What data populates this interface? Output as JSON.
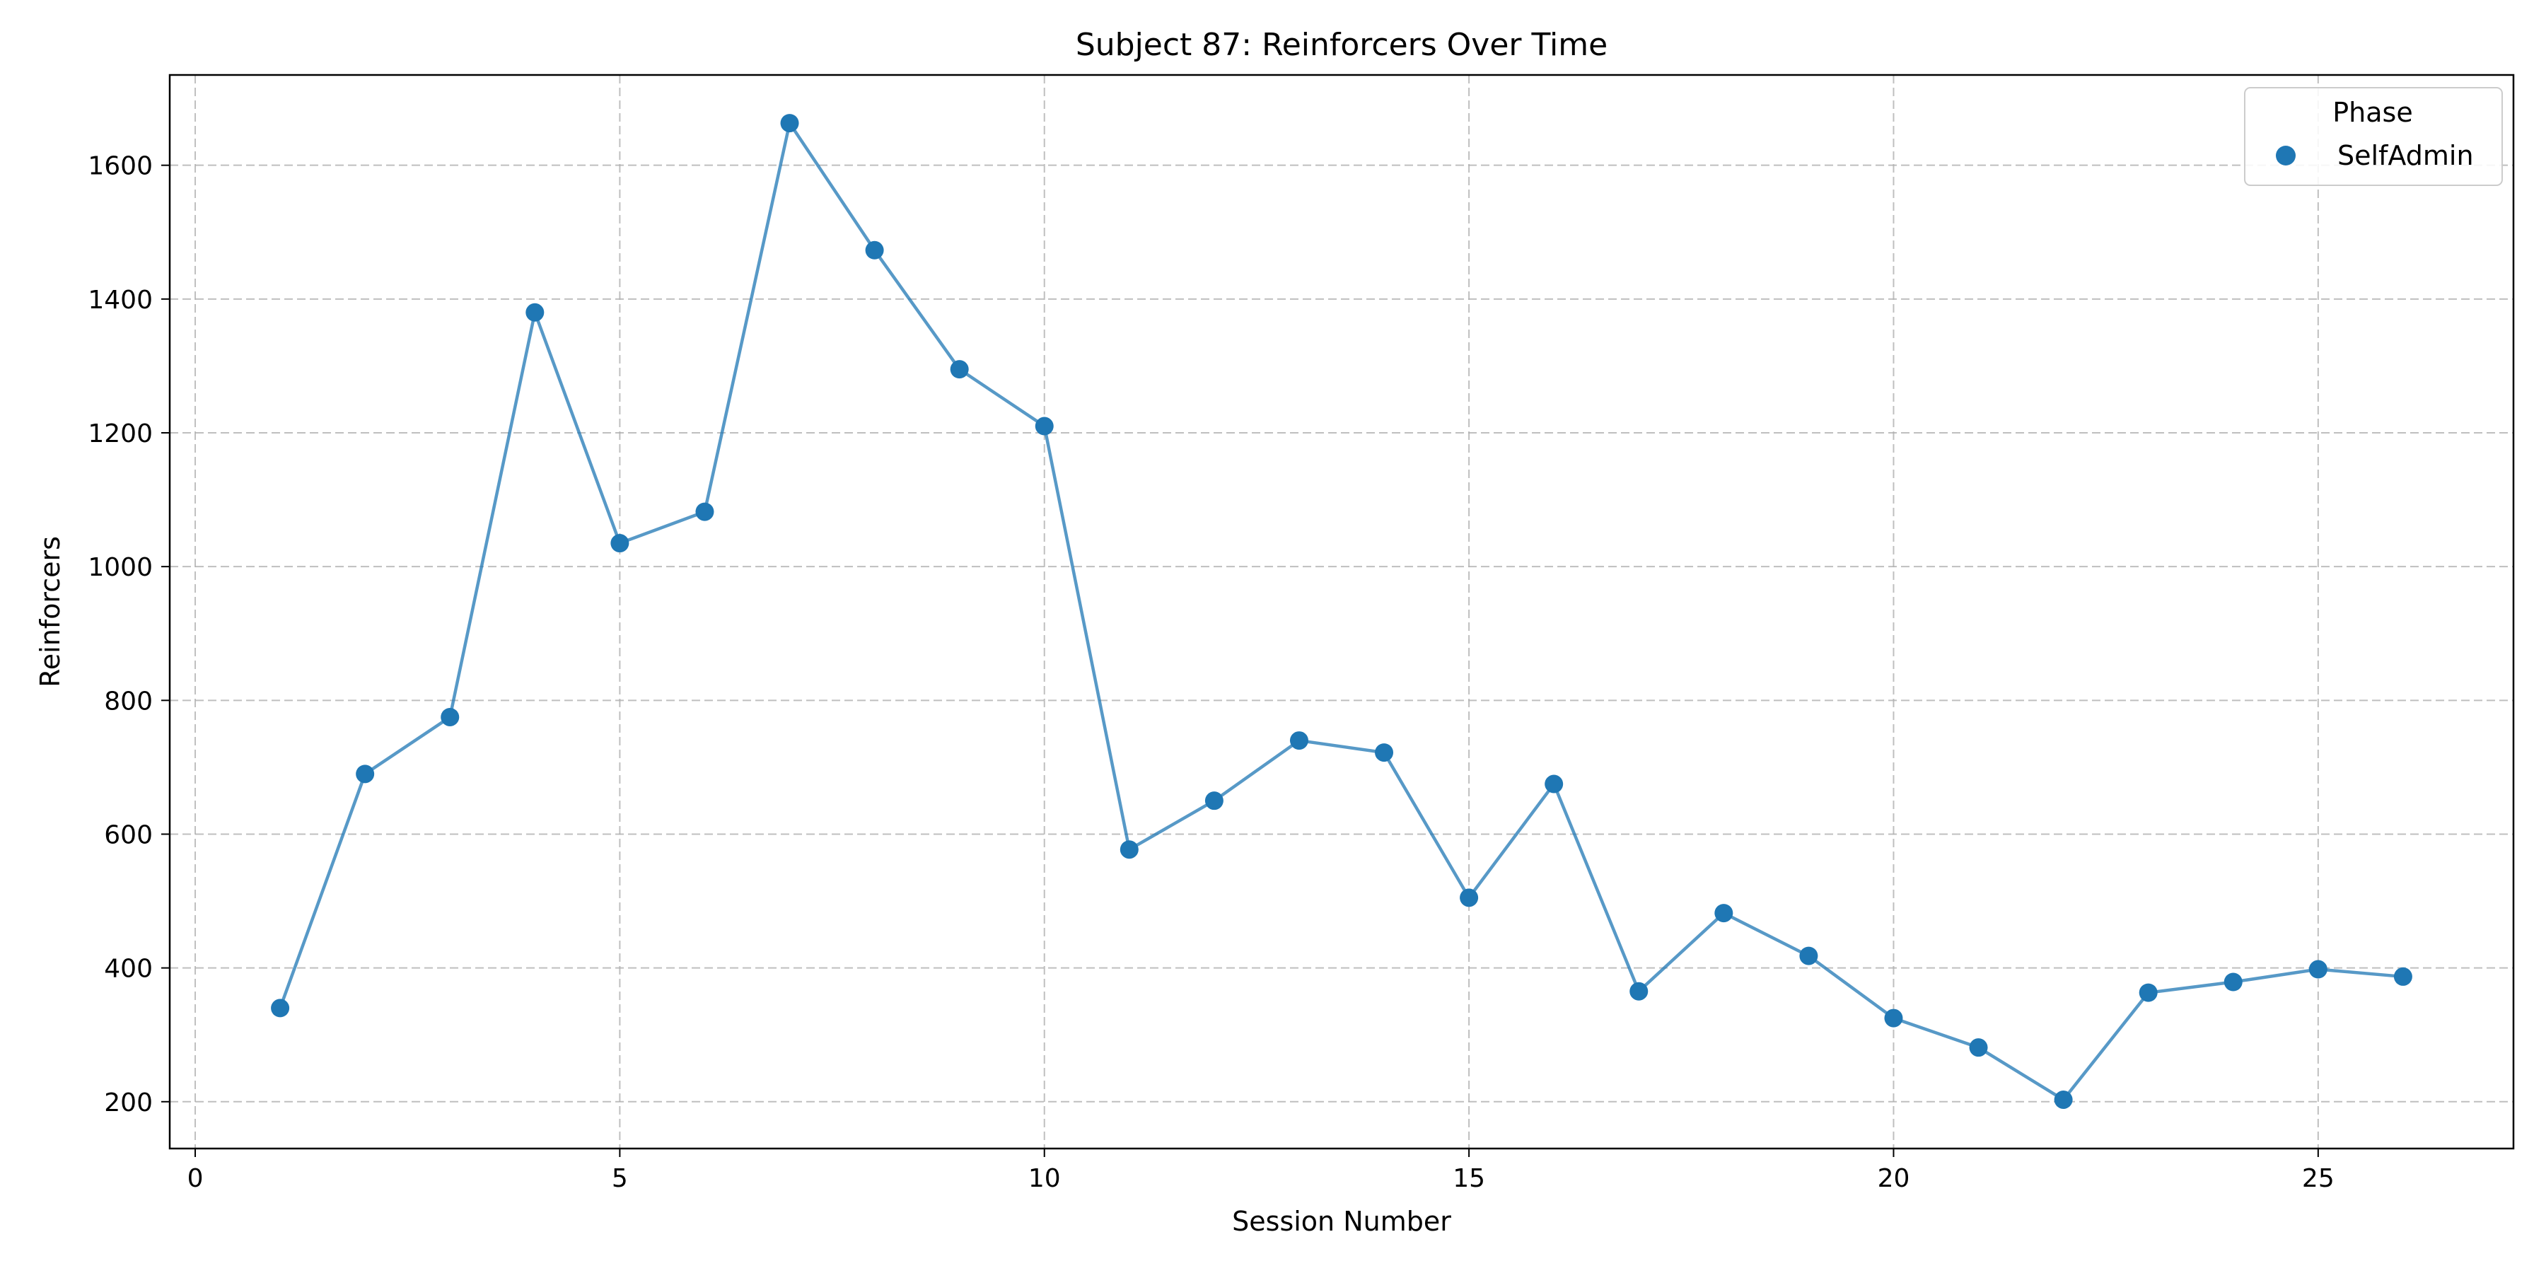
{
  "chart_data": {
    "type": "line",
    "title": "Subject 87: Reinforcers Over Time",
    "xlabel": "Session Number",
    "ylabel": "Reinforcers",
    "xlim": [
      -0.3,
      27.3
    ],
    "ylim": [
      130,
      1735
    ],
    "xticks": [
      0,
      5,
      10,
      15,
      20,
      25
    ],
    "yticks": [
      200,
      400,
      600,
      800,
      1000,
      1200,
      1400,
      1600
    ],
    "grid": true,
    "legend": {
      "title": "Phase",
      "placement": "top-right"
    },
    "series": [
      {
        "name": "SelfAdmin",
        "color": "#1f77b4",
        "x": [
          1,
          2,
          3,
          4,
          5,
          6,
          7,
          8,
          9,
          10,
          11,
          12,
          13,
          14,
          15,
          16,
          17,
          18,
          19,
          20,
          21,
          22,
          23,
          24,
          25,
          26
        ],
        "y": [
          340,
          690,
          775,
          1380,
          1035,
          1082,
          1663,
          1473,
          1295,
          1210,
          577,
          650,
          740,
          722,
          505,
          675,
          365,
          482,
          418,
          325,
          281,
          203,
          363,
          379,
          398,
          387
        ]
      }
    ]
  }
}
